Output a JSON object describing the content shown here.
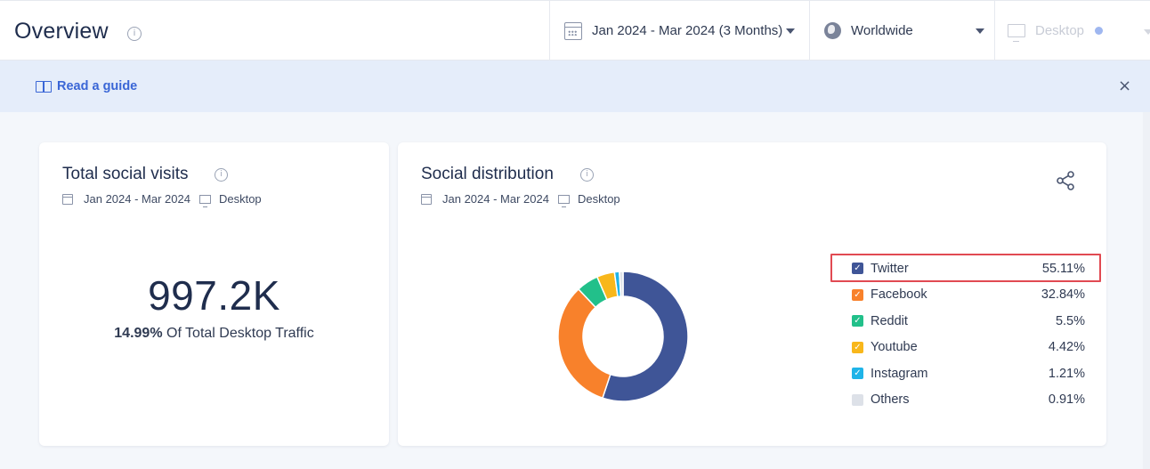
{
  "header": {
    "title": "Overview",
    "date_range": "Jan 2024 - Mar 2024 (3 Months)",
    "region": "Worldwide",
    "device": "Desktop"
  },
  "guide": {
    "link_label": "Read a guide",
    "close_symbol": "×"
  },
  "total_visits_card": {
    "title": "Total social visits",
    "date": "Jan 2024 - Mar 2024",
    "device": "Desktop",
    "value": "997.2K",
    "share_pct": "14.99%",
    "share_text": "Of Total Desktop Traffic"
  },
  "distribution_card": {
    "title": "Social distribution",
    "date": "Jan 2024 - Mar 2024",
    "device": "Desktop",
    "icons": {
      "share": "share-icon",
      "info": "info-icon"
    }
  },
  "chart_data": {
    "type": "pie",
    "title": "Social distribution",
    "series": [
      {
        "name": "Twitter",
        "label": "55.11%",
        "value": 55.11,
        "color": "#3f5597",
        "checked": true
      },
      {
        "name": "Facebook",
        "label": "32.84%",
        "value": 32.84,
        "color": "#f8812b",
        "checked": true
      },
      {
        "name": "Reddit",
        "label": "5.5%",
        "value": 5.5,
        "color": "#22c08a",
        "checked": true
      },
      {
        "name": "Youtube",
        "label": "4.42%",
        "value": 4.42,
        "color": "#f8b71b",
        "checked": true
      },
      {
        "name": "Instagram",
        "label": "1.21%",
        "value": 1.21,
        "color": "#1fb4e8",
        "checked": true
      },
      {
        "name": "Others",
        "label": "0.91%",
        "value": 0.91,
        "color": "#dde1e8",
        "checked": false
      }
    ]
  }
}
